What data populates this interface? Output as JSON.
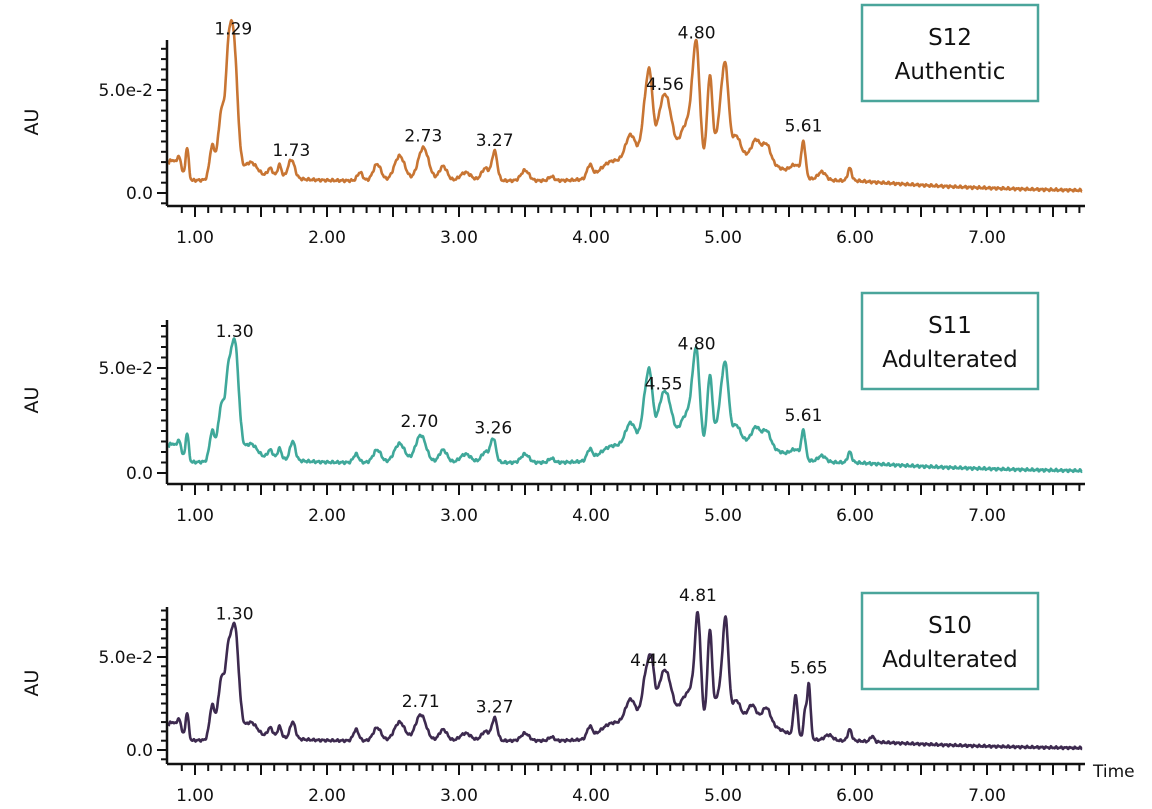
{
  "chart_data": [
    {
      "type": "line",
      "sample": "S12",
      "label": "Authentic",
      "color": "#c87533",
      "box_color": "#4aa59b",
      "ylabel": "AU",
      "xlabel": "",
      "xlim": [
        0.8,
        7.72
      ],
      "ylim": [
        -0.003,
        0.075
      ],
      "x_ticks": [
        "1.00",
        "2.00",
        "3.00",
        "4.00",
        "5.00",
        "6.00",
        "7.00"
      ],
      "y_ticks": [
        "0.0",
        "5.0e-2"
      ],
      "baseline": 0.006,
      "peak_labels": [
        {
          "text": "1.29",
          "x": 1.29,
          "y": 0.074
        },
        {
          "text": "1.73",
          "x": 1.73,
          "y": 0.015
        },
        {
          "text": "2.73",
          "x": 2.73,
          "y": 0.022
        },
        {
          "text": "3.27",
          "x": 3.27,
          "y": 0.02
        },
        {
          "text": "4.56",
          "x": 4.56,
          "y": 0.047
        },
        {
          "text": "4.80",
          "x": 4.8,
          "y": 0.072
        },
        {
          "text": "5.61",
          "x": 5.61,
          "y": 0.027
        }
      ],
      "peaks": [
        [
          0.82,
          0.01,
          0.03
        ],
        [
          0.88,
          0.01,
          0.02
        ],
        [
          0.94,
          0.016,
          0.012
        ],
        [
          1.13,
          0.016,
          0.02
        ],
        [
          1.2,
          0.032,
          0.025
        ],
        [
          1.25,
          0.034,
          0.02
        ],
        [
          1.29,
          0.068,
          0.03
        ],
        [
          1.42,
          0.007,
          0.05
        ],
        [
          1.57,
          0.004,
          0.02
        ],
        [
          1.64,
          0.006,
          0.015
        ],
        [
          1.73,
          0.009,
          0.025
        ],
        [
          2.25,
          0.004,
          0.02
        ],
        [
          2.38,
          0.008,
          0.03
        ],
        [
          2.55,
          0.012,
          0.04
        ],
        [
          2.73,
          0.016,
          0.04
        ],
        [
          2.88,
          0.007,
          0.03
        ],
        [
          3.05,
          0.004,
          0.04
        ],
        [
          3.2,
          0.006,
          0.03
        ],
        [
          3.27,
          0.014,
          0.02
        ],
        [
          3.5,
          0.005,
          0.03
        ],
        [
          3.7,
          0.002,
          0.02
        ],
        [
          3.99,
          0.006,
          0.02
        ],
        [
          4.15,
          0.006,
          0.08
        ],
        [
          4.3,
          0.014,
          0.04
        ],
        [
          4.42,
          0.03,
          0.03
        ],
        [
          4.45,
          0.02,
          0.02
        ],
        [
          4.56,
          0.03,
          0.05
        ],
        [
          4.7,
          0.012,
          0.03
        ],
        [
          4.55,
          0.012,
          0.25
        ],
        [
          4.8,
          0.05,
          0.025
        ],
        [
          4.76,
          0.02,
          0.03
        ],
        [
          4.9,
          0.042,
          0.02
        ],
        [
          4.98,
          0.02,
          0.03
        ],
        [
          5.02,
          0.038,
          0.025
        ],
        [
          5.1,
          0.01,
          0.03
        ],
        [
          5.25,
          0.008,
          0.03
        ],
        [
          5.33,
          0.008,
          0.03
        ],
        [
          5.2,
          0.012,
          0.2
        ],
        [
          5.55,
          0.005,
          0.04
        ],
        [
          5.61,
          0.016,
          0.015
        ],
        [
          5.75,
          0.004,
          0.03
        ],
        [
          5.96,
          0.006,
          0.015
        ]
      ]
    },
    {
      "type": "line",
      "sample": "S11",
      "label": "Adulterated",
      "color": "#3fa89a",
      "box_color": "#4aa59b",
      "ylabel": "AU",
      "xlabel": "",
      "xlim": [
        0.8,
        7.72
      ],
      "ylim": [
        -0.004,
        0.073
      ],
      "x_ticks": [
        "1.00",
        "2.00",
        "3.00",
        "4.00",
        "5.00",
        "6.00",
        "7.00"
      ],
      "y_ticks": [
        "0.0",
        "5.0e-2"
      ],
      "baseline": 0.005,
      "peak_labels": [
        {
          "text": "1.30",
          "x": 1.3,
          "y": 0.062
        },
        {
          "text": "2.70",
          "x": 2.7,
          "y": 0.019
        },
        {
          "text": "3.26",
          "x": 3.26,
          "y": 0.016
        },
        {
          "text": "4.55",
          "x": 4.55,
          "y": 0.037
        },
        {
          "text": "4.80",
          "x": 4.8,
          "y": 0.056
        },
        {
          "text": "5.61",
          "x": 5.61,
          "y": 0.022
        }
      ],
      "peaks": [
        [
          0.82,
          0.009,
          0.03
        ],
        [
          0.88,
          0.009,
          0.02
        ],
        [
          0.94,
          0.014,
          0.012
        ],
        [
          1.13,
          0.014,
          0.02
        ],
        [
          1.2,
          0.026,
          0.025
        ],
        [
          1.25,
          0.028,
          0.02
        ],
        [
          1.3,
          0.056,
          0.03
        ],
        [
          1.42,
          0.007,
          0.05
        ],
        [
          1.57,
          0.004,
          0.02
        ],
        [
          1.64,
          0.005,
          0.015
        ],
        [
          1.74,
          0.009,
          0.02
        ],
        [
          2.22,
          0.004,
          0.02
        ],
        [
          2.38,
          0.006,
          0.03
        ],
        [
          2.55,
          0.009,
          0.04
        ],
        [
          2.71,
          0.013,
          0.04
        ],
        [
          2.88,
          0.006,
          0.03
        ],
        [
          3.05,
          0.004,
          0.04
        ],
        [
          3.2,
          0.005,
          0.03
        ],
        [
          3.26,
          0.011,
          0.02
        ],
        [
          3.5,
          0.004,
          0.03
        ],
        [
          3.7,
          0.002,
          0.02
        ],
        [
          3.99,
          0.005,
          0.02
        ],
        [
          4.15,
          0.005,
          0.08
        ],
        [
          4.3,
          0.012,
          0.04
        ],
        [
          4.42,
          0.025,
          0.03
        ],
        [
          4.45,
          0.016,
          0.02
        ],
        [
          4.56,
          0.024,
          0.05
        ],
        [
          4.7,
          0.01,
          0.03
        ],
        [
          4.55,
          0.01,
          0.25
        ],
        [
          4.8,
          0.04,
          0.025
        ],
        [
          4.76,
          0.016,
          0.03
        ],
        [
          4.9,
          0.034,
          0.02
        ],
        [
          4.98,
          0.016,
          0.03
        ],
        [
          5.02,
          0.032,
          0.025
        ],
        [
          5.1,
          0.008,
          0.03
        ],
        [
          5.25,
          0.007,
          0.03
        ],
        [
          5.33,
          0.007,
          0.03
        ],
        [
          5.2,
          0.01,
          0.2
        ],
        [
          5.55,
          0.004,
          0.04
        ],
        [
          5.61,
          0.013,
          0.015
        ],
        [
          5.75,
          0.003,
          0.03
        ],
        [
          5.96,
          0.005,
          0.015
        ]
      ]
    },
    {
      "type": "line",
      "sample": "S10",
      "label": "Adulterated",
      "color": "#3d2a4f",
      "box_color": "#4aa59b",
      "ylabel": "AU",
      "xlabel": "Time",
      "xlim": [
        0.8,
        7.72
      ],
      "ylim": [
        -0.007,
        0.077
      ],
      "x_ticks": [
        "1.00",
        "2.00",
        "3.00",
        "4.00",
        "5.00",
        "6.00",
        "7.00"
      ],
      "y_ticks": [
        "0.0",
        "5.0e-2"
      ],
      "baseline": 0.005,
      "peak_labels": [
        {
          "text": "1.30",
          "x": 1.3,
          "y": 0.067
        },
        {
          "text": "2.71",
          "x": 2.71,
          "y": 0.02
        },
        {
          "text": "3.27",
          "x": 3.27,
          "y": 0.017
        },
        {
          "text": "4.44",
          "x": 4.44,
          "y": 0.042
        },
        {
          "text": "4.81",
          "x": 4.81,
          "y": 0.077
        },
        {
          "text": "5.65",
          "x": 5.65,
          "y": 0.038
        }
      ],
      "peaks": [
        [
          0.82,
          0.01,
          0.03
        ],
        [
          0.88,
          0.01,
          0.02
        ],
        [
          0.94,
          0.015,
          0.012
        ],
        [
          1.13,
          0.018,
          0.02
        ],
        [
          1.2,
          0.032,
          0.025
        ],
        [
          1.25,
          0.032,
          0.02
        ],
        [
          1.3,
          0.06,
          0.03
        ],
        [
          1.42,
          0.008,
          0.05
        ],
        [
          1.57,
          0.005,
          0.02
        ],
        [
          1.64,
          0.006,
          0.015
        ],
        [
          1.74,
          0.009,
          0.02
        ],
        [
          2.22,
          0.006,
          0.02
        ],
        [
          2.38,
          0.007,
          0.03
        ],
        [
          2.55,
          0.01,
          0.04
        ],
        [
          2.71,
          0.014,
          0.04
        ],
        [
          2.88,
          0.006,
          0.03
        ],
        [
          3.05,
          0.004,
          0.04
        ],
        [
          3.2,
          0.005,
          0.03
        ],
        [
          3.27,
          0.012,
          0.02
        ],
        [
          3.5,
          0.004,
          0.03
        ],
        [
          3.7,
          0.002,
          0.02
        ],
        [
          3.99,
          0.006,
          0.02
        ],
        [
          4.15,
          0.006,
          0.08
        ],
        [
          4.3,
          0.014,
          0.04
        ],
        [
          4.42,
          0.026,
          0.03
        ],
        [
          4.46,
          0.02,
          0.02
        ],
        [
          4.56,
          0.026,
          0.05
        ],
        [
          4.7,
          0.01,
          0.03
        ],
        [
          4.55,
          0.012,
          0.25
        ],
        [
          4.81,
          0.056,
          0.022
        ],
        [
          4.76,
          0.016,
          0.03
        ],
        [
          4.9,
          0.05,
          0.018
        ],
        [
          4.97,
          0.016,
          0.03
        ],
        [
          5.02,
          0.052,
          0.022
        ],
        [
          5.1,
          0.01,
          0.03
        ],
        [
          5.22,
          0.007,
          0.03
        ],
        [
          5.33,
          0.008,
          0.03
        ],
        [
          5.2,
          0.012,
          0.2
        ],
        [
          5.55,
          0.022,
          0.015
        ],
        [
          5.62,
          0.014,
          0.01
        ],
        [
          5.65,
          0.03,
          0.013
        ],
        [
          5.8,
          0.003,
          0.03
        ],
        [
          5.96,
          0.006,
          0.015
        ],
        [
          6.13,
          0.003,
          0.015
        ]
      ]
    }
  ]
}
